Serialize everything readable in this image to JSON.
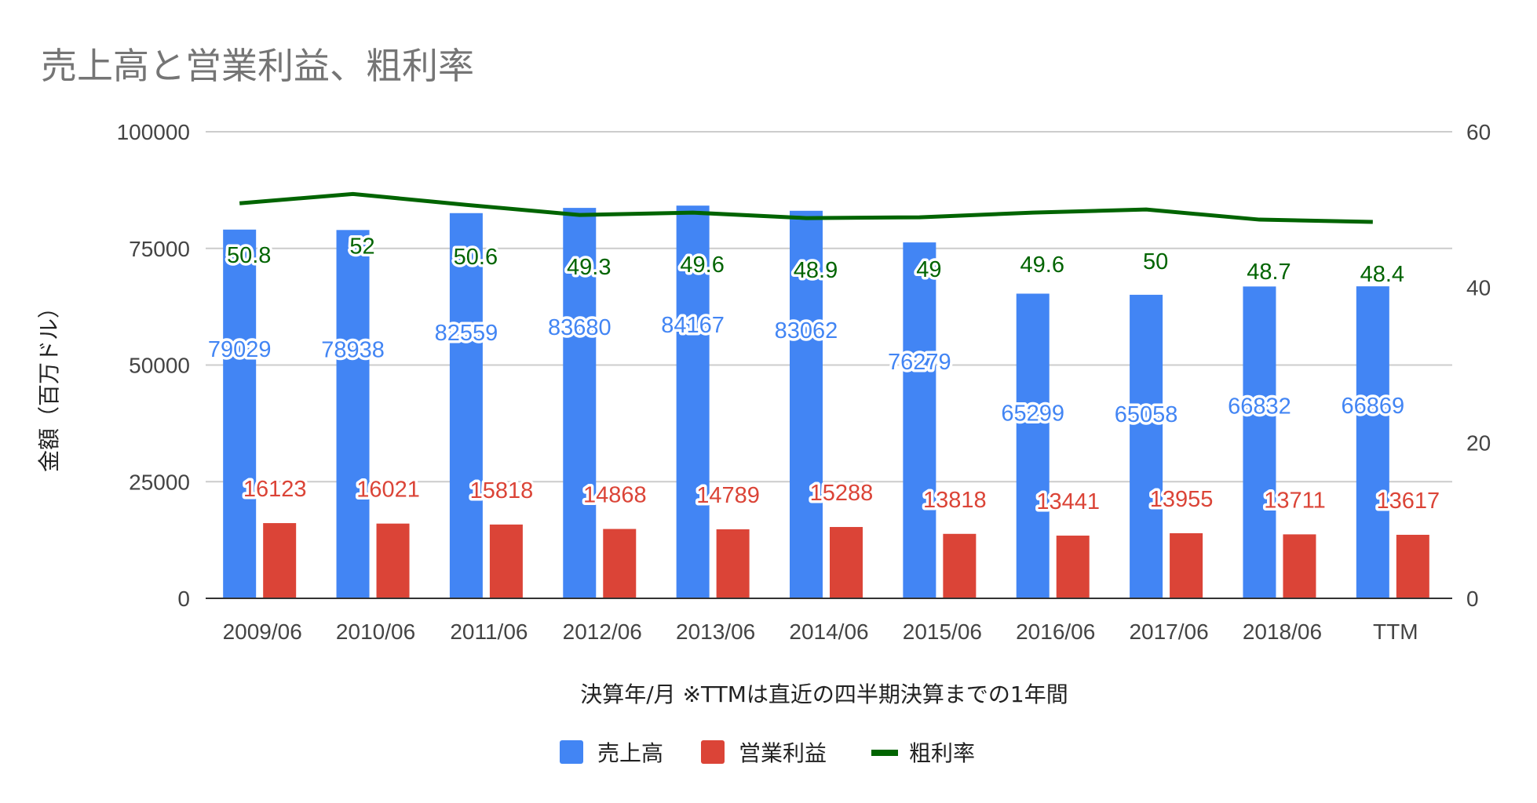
{
  "chart_data": {
    "type": "bar",
    "title": "売上高と営業利益、粗利率",
    "xlabel": "決算年/月 ※TTMは直近の四半期決算までの1年間",
    "ylabel": "金額（百万ドル）",
    "categories": [
      "2009/06",
      "2010/06",
      "2011/06",
      "2012/06",
      "2013/06",
      "2014/06",
      "2015/06",
      "2016/06",
      "2017/06",
      "2018/06",
      "TTM"
    ],
    "ylim": [
      0,
      100000
    ],
    "y_ticks": [
      "0",
      "25000",
      "50000",
      "75000",
      "100000"
    ],
    "y2lim": [
      0,
      60
    ],
    "y2_ticks": [
      "0",
      "20",
      "40",
      "60"
    ],
    "grid": true,
    "legend_position": "bottom",
    "series": [
      {
        "name": "売上高",
        "type": "bar",
        "axis": "left",
        "color": "#4285F4",
        "values": [
          79029,
          78938,
          82559,
          83680,
          84167,
          83062,
          76279,
          65299,
          65058,
          66832,
          66869
        ]
      },
      {
        "name": "営業利益",
        "type": "bar",
        "axis": "left",
        "color": "#DB4437",
        "values": [
          16123,
          16021,
          15818,
          14868,
          14789,
          15288,
          13818,
          13441,
          13955,
          13711,
          13617
        ]
      },
      {
        "name": "粗利率",
        "type": "line",
        "axis": "right",
        "color": "#006400",
        "values": [
          50.8,
          52,
          50.6,
          49.3,
          49.6,
          48.9,
          49,
          49.6,
          50,
          48.7,
          48.4
        ]
      }
    ]
  }
}
